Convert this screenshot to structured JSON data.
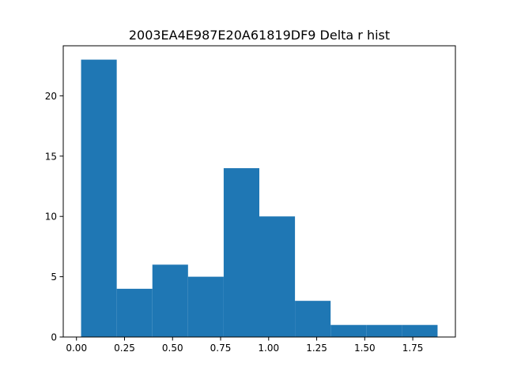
{
  "chart_data": {
    "type": "bar",
    "title": "2003EA4E987E20A61819DF9 Delta r hist",
    "xlabel": "",
    "ylabel": "",
    "bins": [
      {
        "x0": 0.024,
        "x1": 0.2095,
        "count": 23
      },
      {
        "x0": 0.2095,
        "x1": 0.395,
        "count": 4
      },
      {
        "x0": 0.395,
        "x1": 0.5805,
        "count": 6
      },
      {
        "x0": 0.5805,
        "x1": 0.766,
        "count": 5
      },
      {
        "x0": 0.766,
        "x1": 0.9515,
        "count": 14
      },
      {
        "x0": 0.9515,
        "x1": 1.137,
        "count": 10
      },
      {
        "x0": 1.137,
        "x1": 1.3225,
        "count": 3
      },
      {
        "x0": 1.3225,
        "x1": 1.508,
        "count": 1
      },
      {
        "x0": 1.508,
        "x1": 1.6935,
        "count": 1
      },
      {
        "x0": 1.6935,
        "x1": 1.879,
        "count": 1
      }
    ],
    "xlim": [
      -0.0688,
      1.9718
    ],
    "ylim": [
      0,
      24.15
    ],
    "xticks": [
      0.0,
      0.25,
      0.5,
      0.75,
      1.0,
      1.25,
      1.5,
      1.75
    ],
    "xtick_labels": [
      "0.00",
      "0.25",
      "0.50",
      "0.75",
      "1.00",
      "1.25",
      "1.50",
      "1.75"
    ],
    "yticks": [
      0,
      5,
      10,
      15,
      20
    ],
    "ytick_labels": [
      "0",
      "5",
      "10",
      "15",
      "20"
    ],
    "bar_color": "#1f77b4",
    "grid": false,
    "legend": "none"
  }
}
